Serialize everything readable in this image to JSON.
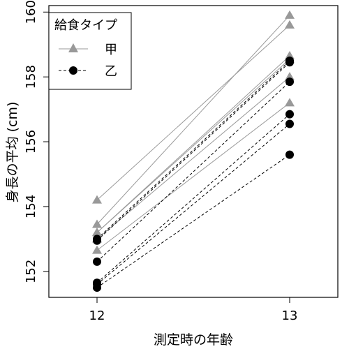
{
  "chart_data": {
    "type": "line",
    "xlabel": "測定時の年齢",
    "ylabel": "身長の平均 (cm)",
    "x": [
      12,
      13
    ],
    "xlim": [
      11.75,
      13.25
    ],
    "ylim": [
      151.2,
      160.2
    ],
    "y_ticks": [
      152,
      154,
      156,
      158,
      160
    ],
    "grid": false,
    "legend": {
      "title": "給食タイプ",
      "placement": "top-left",
      "entries": [
        "甲",
        "乙"
      ]
    },
    "series": [
      {
        "name": "甲",
        "color": "#999999",
        "marker": "triangle",
        "line": "solid",
        "lines": [
          [
            154.2,
            159.6
          ],
          [
            153.45,
            159.9
          ],
          [
            153.2,
            158.65
          ],
          [
            153.0,
            158.0
          ],
          [
            152.65,
            157.2
          ],
          [
            153.2,
            158.55
          ]
        ]
      },
      {
        "name": "乙",
        "color": "#000000",
        "marker": "circle",
        "line": "dashed",
        "lines": [
          [
            153.0,
            158.5
          ],
          [
            152.3,
            157.85
          ],
          [
            151.65,
            156.85
          ],
          [
            151.6,
            156.55
          ],
          [
            151.5,
            155.6
          ],
          [
            152.95,
            158.45
          ]
        ]
      }
    ]
  }
}
